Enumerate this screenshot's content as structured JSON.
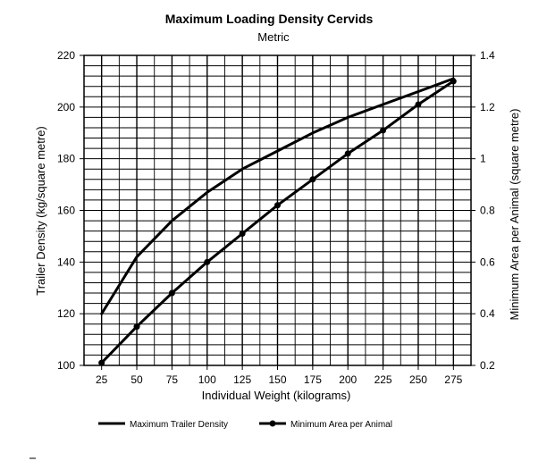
{
  "chart_data": {
    "type": "line",
    "title": "Maximum Loading Density Cervids",
    "subtitle": "Metric",
    "xlabel": "Individual Weight (kilograms)",
    "ylabel_left": "Trailer Density (kg/square metre)",
    "ylabel_right": "Minimum Area per Animal (square metre)",
    "x_ticks": [
      25,
      50,
      75,
      100,
      125,
      150,
      175,
      200,
      225,
      250,
      275
    ],
    "xlim": [
      12.5,
      287.5
    ],
    "y_left_ticks": [
      100,
      120,
      140,
      160,
      180,
      200,
      220
    ],
    "ylim_left": [
      100,
      220
    ],
    "y_right_ticks": [
      "0.2",
      "0.4",
      "0.6",
      "0.8",
      "1",
      "1.2",
      "1.4"
    ],
    "ylim_right": [
      0.2,
      1.4
    ],
    "grid": true,
    "legend_position": "bottom",
    "series": [
      {
        "name": "Maximum Trailer Density",
        "axis": "left",
        "marker": "none",
        "x": [
          25,
          50,
          75,
          100,
          125,
          150,
          175,
          200,
          225,
          250,
          275
        ],
        "values": [
          120,
          142,
          156,
          167,
          176,
          183,
          190,
          196,
          201,
          206,
          211
        ]
      },
      {
        "name": "Minimum Area per Animal",
        "axis": "right",
        "marker": "circle",
        "x": [
          25,
          50,
          75,
          100,
          125,
          150,
          175,
          200,
          225,
          250,
          275
        ],
        "values": [
          0.21,
          0.35,
          0.48,
          0.6,
          0.71,
          0.82,
          0.92,
          1.02,
          1.11,
          1.21,
          1.3
        ]
      }
    ],
    "colors": {
      "line": "#000000",
      "grid": "#000000",
      "background": "#ffffff"
    }
  }
}
